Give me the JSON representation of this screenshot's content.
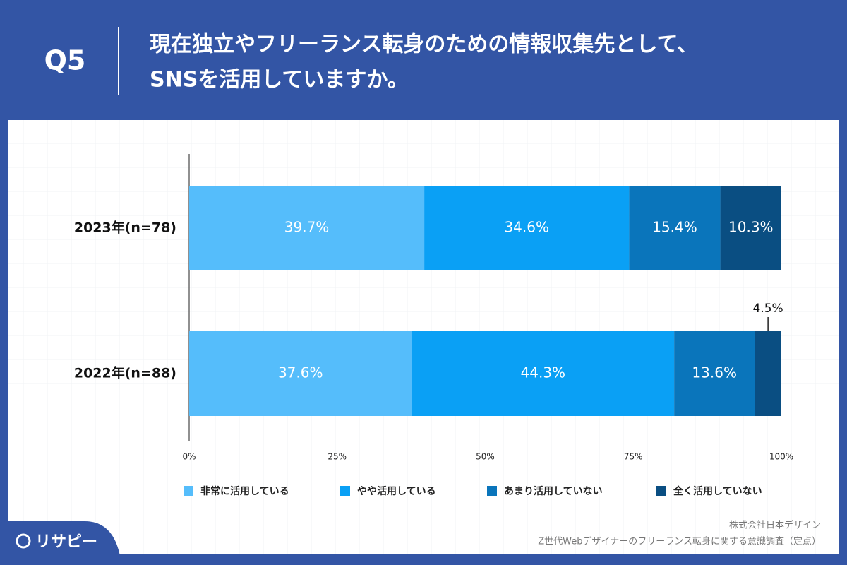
{
  "header": {
    "number": "Q5",
    "title_lines": [
      "現在独立やフリーランス転身のための情報収集先として、",
      "SNSを活用していますか。"
    ]
  },
  "chart_data": {
    "type": "stacked-barh",
    "categories": [
      "2023年(n=78)",
      "2022年(n=88)"
    ],
    "series": [
      {
        "name": "非常に活用している",
        "color": "#55bdfb",
        "values": [
          39.7,
          37.6
        ],
        "value_labels": [
          "39.7%",
          "37.6%"
        ]
      },
      {
        "name": "やや活用している",
        "color": "#0aa0f5",
        "values": [
          34.6,
          44.3
        ],
        "value_labels": [
          "34.6%",
          "44.3%"
        ]
      },
      {
        "name": "あまり活用していない",
        "color": "#0a75bb",
        "values": [
          15.4,
          13.6
        ],
        "value_labels": [
          "15.4%",
          "13.6%"
        ]
      },
      {
        "name": "全く活用していない",
        "color": "#0a4e82",
        "values": [
          10.3,
          4.5
        ],
        "value_labels": [
          "10.3%",
          "4.5%"
        ]
      }
    ],
    "xlim": [
      0,
      100
    ],
    "xticks": [
      {
        "value": 0,
        "label": "0%"
      },
      {
        "value": 25,
        "label": "25%"
      },
      {
        "value": 50,
        "label": "50%"
      },
      {
        "value": 75,
        "label": "75%"
      },
      {
        "value": 100,
        "label": "100%"
      }
    ],
    "legend": "bottom"
  },
  "footer": {
    "company": "株式会社日本デザイン",
    "survey": "Z世代Webデザイナーのフリーランス転身に関する意識調査（定点）",
    "logo": "リサピー"
  }
}
